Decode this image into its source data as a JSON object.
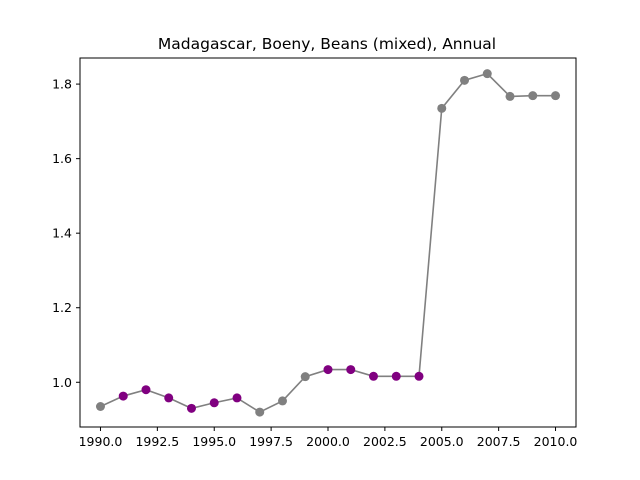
{
  "chart_data": {
    "type": "line",
    "title": "Madagascar, Boeny, Beans (mixed), Annual",
    "xlabel": "",
    "ylabel": "",
    "xlim": [
      1989.1,
      2010.9
    ],
    "ylim": [
      0.88,
      1.87
    ],
    "xticks": [
      1990.0,
      1992.5,
      1995.0,
      1997.5,
      2000.0,
      2002.5,
      2005.0,
      2007.5,
      2010.0
    ],
    "xtick_labels": [
      "1990.0",
      "1992.5",
      "1995.0",
      "1997.5",
      "2000.0",
      "2002.5",
      "2005.0",
      "2007.5",
      "2010.0"
    ],
    "yticks": [
      1.0,
      1.2,
      1.4,
      1.6,
      1.8
    ],
    "ytick_labels": [
      "1.0",
      "1.2",
      "1.4",
      "1.6",
      "1.8"
    ],
    "grid": false,
    "line_color": "#808080",
    "point_colors": {
      "gray": "#808080",
      "purple": "#800080"
    },
    "points": [
      {
        "x": 1990,
        "y": 0.935,
        "color": "gray"
      },
      {
        "x": 1991,
        "y": 0.963,
        "color": "purple"
      },
      {
        "x": 1992,
        "y": 0.98,
        "color": "purple"
      },
      {
        "x": 1993,
        "y": 0.958,
        "color": "purple"
      },
      {
        "x": 1994,
        "y": 0.93,
        "color": "purple"
      },
      {
        "x": 1995,
        "y": 0.945,
        "color": "purple"
      },
      {
        "x": 1996,
        "y": 0.958,
        "color": "purple"
      },
      {
        "x": 1997,
        "y": 0.92,
        "color": "gray"
      },
      {
        "x": 1998,
        "y": 0.95,
        "color": "gray"
      },
      {
        "x": 1999,
        "y": 1.015,
        "color": "gray"
      },
      {
        "x": 2000,
        "y": 1.034,
        "color": "purple"
      },
      {
        "x": 2001,
        "y": 1.034,
        "color": "purple"
      },
      {
        "x": 2002,
        "y": 1.016,
        "color": "purple"
      },
      {
        "x": 2003,
        "y": 1.016,
        "color": "purple"
      },
      {
        "x": 2004,
        "y": 1.016,
        "color": "purple"
      },
      {
        "x": 2005,
        "y": 1.735,
        "color": "gray"
      },
      {
        "x": 2006,
        "y": 1.81,
        "color": "gray"
      },
      {
        "x": 2007,
        "y": 1.828,
        "color": "gray"
      },
      {
        "x": 2008,
        "y": 1.767,
        "color": "gray"
      },
      {
        "x": 2009,
        "y": 1.769,
        "color": "gray"
      },
      {
        "x": 2010,
        "y": 1.769,
        "color": "gray"
      }
    ]
  }
}
